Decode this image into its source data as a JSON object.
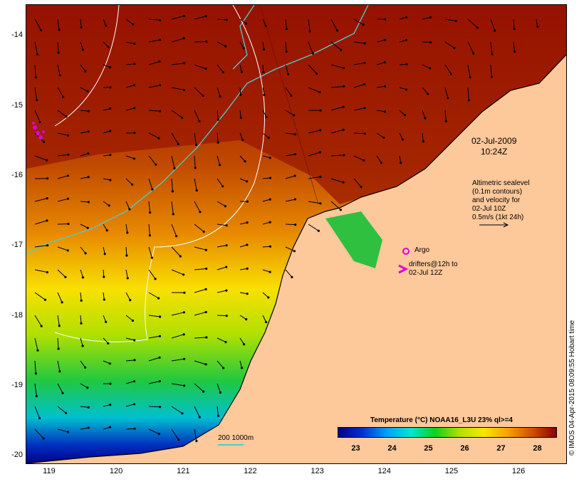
{
  "map": {
    "lat_ticks": [
      "-14",
      "-15",
      "-16",
      "-17",
      "-18",
      "-19",
      "-20"
    ],
    "lon_ticks": [
      "119",
      "120",
      "121",
      "122",
      "123",
      "124",
      "125",
      "126"
    ],
    "lat_range": [
      -20.1,
      -13.55
    ],
    "lon_range": [
      118.65,
      126.7
    ],
    "land_color": "#fdc89a",
    "contour_color": "#4cd0c8"
  },
  "date_label": [
    "02-Jul-2009",
    "10:24Z"
  ],
  "altimetry_note": [
    "Altimetric sealevel",
    "(0.1m contours)",
    "and velocity for",
    "02-Jul 10Z",
    "0.5m/s (1kt 24h)"
  ],
  "argo_label": "Argo",
  "drifters_label": [
    "drifters@12h to",
    "02-Jul 12Z"
  ],
  "contour_key": "200  1000m",
  "legend": {
    "title": "Temperature (°C) NOAA16_L3U 23% ql>=4",
    "ticks": [
      "23",
      "24",
      "25",
      "26",
      "27",
      "28"
    ],
    "range": [
      22.5,
      28.5
    ],
    "colors": [
      "#00008b",
      "#0030d0",
      "#00a0ff",
      "#00e8d0",
      "#10d020",
      "#b0e000",
      "#f8e800",
      "#f8a000",
      "#d05000",
      "#8b0000"
    ]
  },
  "credit": "© IMOS 04-Apr-2015 08:09:55 Hobart time"
}
